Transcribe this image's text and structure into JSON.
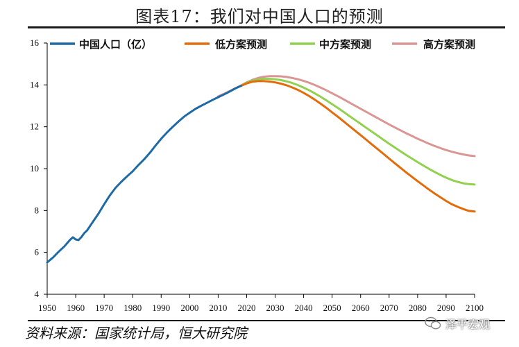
{
  "title": "图表17：我们对中国人口的预测",
  "source": "资料来源：国家统计局，恒大研究院",
  "watermark": "泽平宏观",
  "chart_data": {
    "type": "line",
    "title": "图表17：我们对中国人口的预测",
    "xlabel": "",
    "ylabel": "",
    "xlim": [
      1950,
      2100
    ],
    "ylim": [
      4,
      16
    ],
    "x_ticks": [
      1950,
      1960,
      1970,
      1980,
      1990,
      2000,
      2010,
      2020,
      2030,
      2040,
      2050,
      2060,
      2070,
      2080,
      2090,
      2100
    ],
    "y_ticks": [
      4,
      6,
      8,
      10,
      12,
      14,
      16
    ],
    "legend_position": "top",
    "series": [
      {
        "name": "中国人口（亿）",
        "color": "#1f6aa5",
        "points": [
          [
            1950,
            5.52
          ],
          [
            1952,
            5.75
          ],
          [
            1954,
            6.03
          ],
          [
            1956,
            6.28
          ],
          [
            1958,
            6.6
          ],
          [
            1959,
            6.72
          ],
          [
            1960,
            6.62
          ],
          [
            1961,
            6.59
          ],
          [
            1962,
            6.73
          ],
          [
            1963,
            6.92
          ],
          [
            1964,
            7.05
          ],
          [
            1966,
            7.45
          ],
          [
            1968,
            7.85
          ],
          [
            1970,
            8.3
          ],
          [
            1972,
            8.72
          ],
          [
            1974,
            9.09
          ],
          [
            1976,
            9.37
          ],
          [
            1978,
            9.63
          ],
          [
            1980,
            9.87
          ],
          [
            1982,
            10.17
          ],
          [
            1984,
            10.44
          ],
          [
            1986,
            10.75
          ],
          [
            1988,
            11.1
          ],
          [
            1990,
            11.43
          ],
          [
            1992,
            11.72
          ],
          [
            1994,
            11.99
          ],
          [
            1996,
            12.24
          ],
          [
            1998,
            12.48
          ],
          [
            2000,
            12.67
          ],
          [
            2002,
            12.85
          ],
          [
            2004,
            13.0
          ],
          [
            2006,
            13.14
          ],
          [
            2008,
            13.28
          ],
          [
            2010,
            13.41
          ],
          [
            2012,
            13.54
          ],
          [
            2014,
            13.68
          ],
          [
            2016,
            13.83
          ],
          [
            2018,
            13.95
          ]
        ]
      },
      {
        "name": "低方案预测",
        "color": "#e36c0a",
        "points": [
          [
            2018,
            13.95
          ],
          [
            2020,
            14.07
          ],
          [
            2022,
            14.15
          ],
          [
            2024,
            14.18
          ],
          [
            2026,
            14.18
          ],
          [
            2028,
            14.16
          ],
          [
            2030,
            14.12
          ],
          [
            2032,
            14.06
          ],
          [
            2034,
            13.98
          ],
          [
            2036,
            13.88
          ],
          [
            2038,
            13.76
          ],
          [
            2040,
            13.62
          ],
          [
            2042,
            13.46
          ],
          [
            2044,
            13.29
          ],
          [
            2046,
            13.1
          ],
          [
            2048,
            12.9
          ],
          [
            2050,
            12.69
          ],
          [
            2052,
            12.48
          ],
          [
            2054,
            12.26
          ],
          [
            2056,
            12.04
          ],
          [
            2058,
            11.82
          ],
          [
            2060,
            11.6
          ],
          [
            2062,
            11.38
          ],
          [
            2064,
            11.15
          ],
          [
            2066,
            10.93
          ],
          [
            2068,
            10.71
          ],
          [
            2070,
            10.48
          ],
          [
            2072,
            10.26
          ],
          [
            2074,
            10.04
          ],
          [
            2076,
            9.82
          ],
          [
            2078,
            9.61
          ],
          [
            2080,
            9.4
          ],
          [
            2082,
            9.2
          ],
          [
            2084,
            9.0
          ],
          [
            2086,
            8.81
          ],
          [
            2088,
            8.63
          ],
          [
            2090,
            8.46
          ],
          [
            2092,
            8.3
          ],
          [
            2094,
            8.18
          ],
          [
            2096,
            8.07
          ],
          [
            2098,
            7.98
          ],
          [
            2100,
            7.95
          ]
        ]
      },
      {
        "name": "中方案预测",
        "color": "#92d050",
        "points": [
          [
            2018,
            13.95
          ],
          [
            2020,
            14.1
          ],
          [
            2022,
            14.2
          ],
          [
            2024,
            14.26
          ],
          [
            2026,
            14.29
          ],
          [
            2028,
            14.29
          ],
          [
            2030,
            14.27
          ],
          [
            2032,
            14.23
          ],
          [
            2034,
            14.17
          ],
          [
            2036,
            14.09
          ],
          [
            2038,
            13.99
          ],
          [
            2040,
            13.87
          ],
          [
            2042,
            13.74
          ],
          [
            2044,
            13.59
          ],
          [
            2046,
            13.43
          ],
          [
            2048,
            13.26
          ],
          [
            2050,
            13.08
          ],
          [
            2052,
            12.9
          ],
          [
            2054,
            12.71
          ],
          [
            2056,
            12.52
          ],
          [
            2058,
            12.33
          ],
          [
            2060,
            12.14
          ],
          [
            2062,
            11.95
          ],
          [
            2064,
            11.76
          ],
          [
            2066,
            11.57
          ],
          [
            2068,
            11.38
          ],
          [
            2070,
            11.19
          ],
          [
            2072,
            11.01
          ],
          [
            2074,
            10.83
          ],
          [
            2076,
            10.65
          ],
          [
            2078,
            10.48
          ],
          [
            2080,
            10.31
          ],
          [
            2082,
            10.15
          ],
          [
            2084,
            9.99
          ],
          [
            2086,
            9.84
          ],
          [
            2088,
            9.7
          ],
          [
            2090,
            9.57
          ],
          [
            2092,
            9.46
          ],
          [
            2094,
            9.37
          ],
          [
            2096,
            9.3
          ],
          [
            2098,
            9.26
          ],
          [
            2100,
            9.24
          ]
        ]
      },
      {
        "name": "高方案预测",
        "color": "#d99694",
        "points": [
          [
            2010,
            13.45
          ],
          [
            2012,
            13.57
          ],
          [
            2014,
            13.7
          ],
          [
            2016,
            13.84
          ],
          [
            2018,
            13.97
          ],
          [
            2020,
            14.12
          ],
          [
            2022,
            14.24
          ],
          [
            2024,
            14.33
          ],
          [
            2026,
            14.39
          ],
          [
            2028,
            14.42
          ],
          [
            2030,
            14.42
          ],
          [
            2032,
            14.41
          ],
          [
            2034,
            14.38
          ],
          [
            2036,
            14.33
          ],
          [
            2038,
            14.27
          ],
          [
            2040,
            14.19
          ],
          [
            2042,
            14.1
          ],
          [
            2044,
            13.99
          ],
          [
            2046,
            13.87
          ],
          [
            2048,
            13.74
          ],
          [
            2050,
            13.6
          ],
          [
            2052,
            13.46
          ],
          [
            2054,
            13.31
          ],
          [
            2056,
            13.16
          ],
          [
            2058,
            13.01
          ],
          [
            2060,
            12.86
          ],
          [
            2062,
            12.71
          ],
          [
            2064,
            12.56
          ],
          [
            2066,
            12.41
          ],
          [
            2068,
            12.26
          ],
          [
            2070,
            12.11
          ],
          [
            2072,
            11.97
          ],
          [
            2074,
            11.83
          ],
          [
            2076,
            11.69
          ],
          [
            2078,
            11.56
          ],
          [
            2080,
            11.43
          ],
          [
            2082,
            11.31
          ],
          [
            2084,
            11.19
          ],
          [
            2086,
            11.08
          ],
          [
            2088,
            10.98
          ],
          [
            2090,
            10.89
          ],
          [
            2092,
            10.81
          ],
          [
            2094,
            10.74
          ],
          [
            2096,
            10.68
          ],
          [
            2098,
            10.63
          ],
          [
            2100,
            10.6
          ]
        ]
      }
    ]
  }
}
